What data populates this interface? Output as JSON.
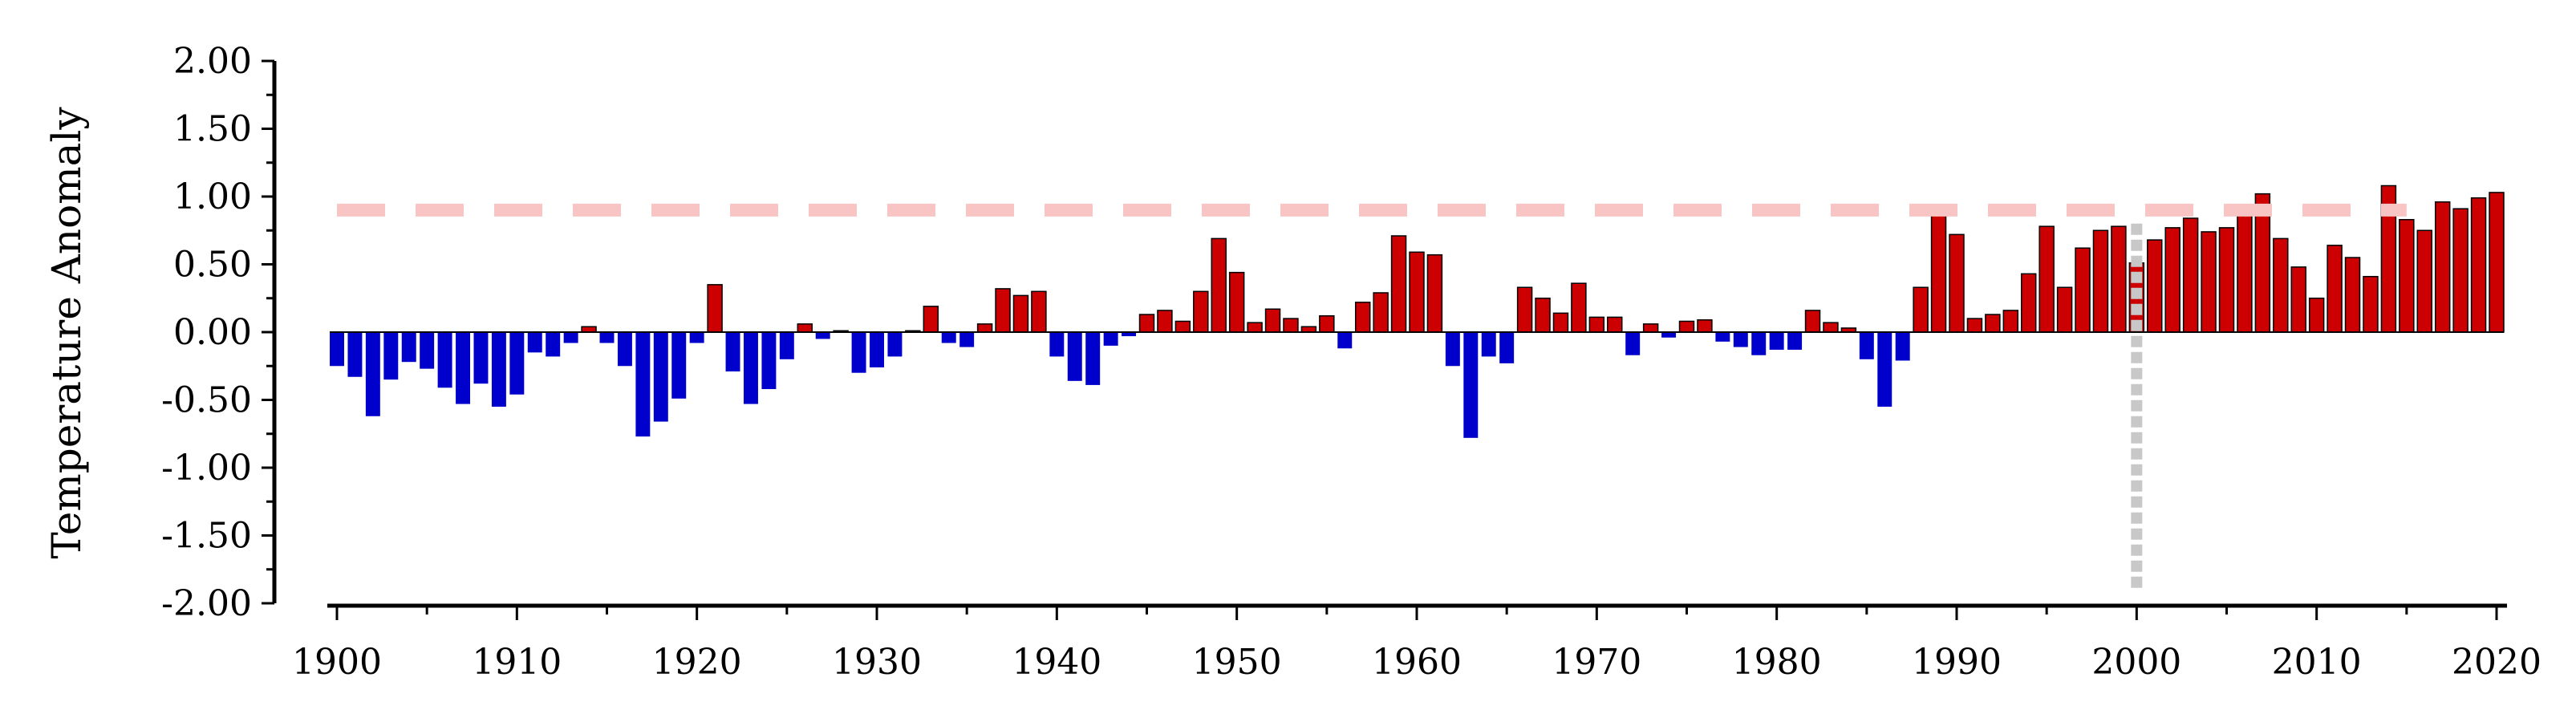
{
  "chart_data": {
    "type": "bar",
    "ylabel": "Temperature Anomaly",
    "xlabel": "",
    "title": "",
    "ylim": [
      -2.0,
      2.0
    ],
    "xlim": [
      1900,
      2020
    ],
    "y_ticks": [
      "2.00",
      "1.50",
      "1.00",
      "0.50",
      "0.00",
      "-0.50",
      "-1.00",
      "-1.50",
      "-2.00"
    ],
    "y_tick_values": [
      2.0,
      1.5,
      1.0,
      0.5,
      0.0,
      -0.5,
      -1.0,
      -1.5,
      -2.0
    ],
    "x_ticks": [
      "1900",
      "1910",
      "1920",
      "1930",
      "1940",
      "1950",
      "1960",
      "1970",
      "1980",
      "1990",
      "2000",
      "2010",
      "2020"
    ],
    "x_tick_values": [
      1900,
      1910,
      1920,
      1930,
      1940,
      1950,
      1960,
      1970,
      1980,
      1990,
      2000,
      2010,
      2020
    ],
    "grid": false,
    "colors": {
      "positive": "#cc0000",
      "negative": "#0000cc",
      "threshold_line": "#f8c4c4",
      "marker_line": "#c8c8c8",
      "bar_edge": "#000000"
    },
    "threshold": {
      "value": 0.9,
      "from": 1900,
      "to": 2015
    },
    "marker_year": 2000,
    "x": [
      1900,
      1901,
      1902,
      1903,
      1904,
      1905,
      1906,
      1907,
      1908,
      1909,
      1910,
      1911,
      1912,
      1913,
      1914,
      1915,
      1916,
      1917,
      1918,
      1919,
      1920,
      1921,
      1922,
      1923,
      1924,
      1925,
      1926,
      1927,
      1928,
      1929,
      1930,
      1931,
      1932,
      1933,
      1934,
      1935,
      1936,
      1937,
      1938,
      1939,
      1940,
      1941,
      1942,
      1943,
      1944,
      1945,
      1946,
      1947,
      1948,
      1949,
      1950,
      1951,
      1952,
      1953,
      1954,
      1955,
      1956,
      1957,
      1958,
      1959,
      1960,
      1961,
      1962,
      1963,
      1964,
      1965,
      1966,
      1967,
      1968,
      1969,
      1970,
      1971,
      1972,
      1973,
      1974,
      1975,
      1976,
      1977,
      1978,
      1979,
      1980,
      1981,
      1982,
      1983,
      1984,
      1985,
      1986,
      1987,
      1988,
      1989,
      1990,
      1991,
      1992,
      1993,
      1994,
      1995,
      1996,
      1997,
      1998,
      1999,
      2000,
      2001,
      2002,
      2003,
      2004,
      2005,
      2006,
      2007,
      2008,
      2009,
      2010,
      2011,
      2012,
      2013,
      2014,
      2015,
      2016,
      2017,
      2018,
      2019,
      2020
    ],
    "values": [
      -0.25,
      -0.33,
      -0.62,
      -0.35,
      -0.22,
      -0.27,
      -0.41,
      -0.53,
      -0.38,
      -0.55,
      -0.46,
      -0.15,
      -0.18,
      -0.08,
      0.04,
      -0.08,
      -0.25,
      -0.77,
      -0.66,
      -0.49,
      -0.08,
      0.35,
      -0.29,
      -0.53,
      -0.42,
      -0.2,
      0.06,
      -0.05,
      0.01,
      -0.3,
      -0.26,
      -0.18,
      0.01,
      0.19,
      -0.08,
      -0.11,
      0.06,
      0.32,
      0.27,
      0.3,
      -0.18,
      -0.36,
      -0.39,
      -0.1,
      -0.03,
      0.13,
      0.16,
      0.08,
      0.3,
      0.69,
      0.44,
      0.07,
      0.17,
      0.1,
      0.04,
      0.12,
      -0.12,
      0.22,
      0.29,
      0.71,
      0.59,
      0.57,
      -0.25,
      -0.78,
      -0.18,
      -0.23,
      0.33,
      0.25,
      0.14,
      0.36,
      0.11,
      0.11,
      -0.17,
      0.06,
      -0.04,
      0.08,
      0.09,
      -0.07,
      -0.11,
      -0.17,
      -0.13,
      -0.13,
      0.16,
      0.07,
      0.03,
      -0.2,
      -0.55,
      -0.21,
      0.33,
      0.9,
      0.72,
      0.1,
      0.13,
      0.16,
      0.43,
      0.78,
      0.33,
      0.62,
      0.75,
      0.78,
      0.51,
      0.68,
      0.77,
      0.84,
      0.74,
      0.77,
      0.9,
      1.02,
      0.69,
      0.48,
      0.25,
      0.64,
      0.55,
      0.41,
      1.08,
      0.83,
      0.75,
      0.96,
      0.91,
      0.99,
      1.03
    ]
  }
}
